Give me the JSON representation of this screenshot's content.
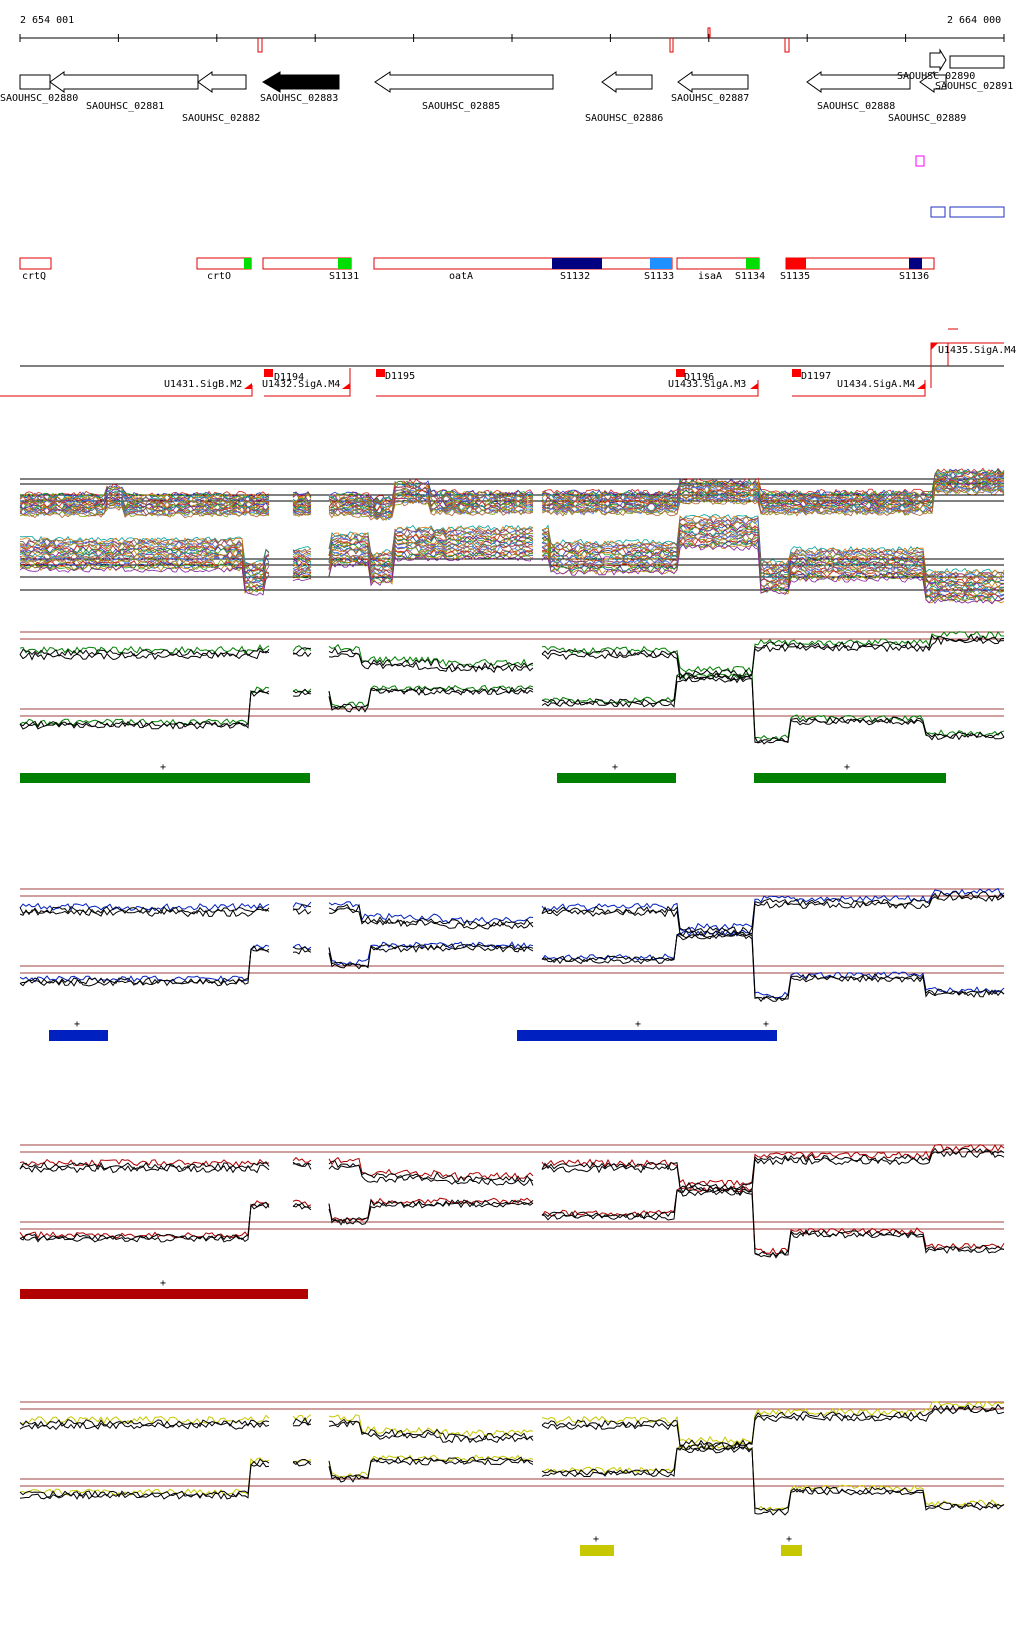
{
  "ruler": {
    "start_label": "2 654 001",
    "end_label": "2 664 000"
  },
  "colors": {
    "gene_outline": "#000000",
    "gene_highlight": "#000000",
    "feature_outline": "#e00000",
    "feature_green": "#00dd00",
    "feature_navy": "#000080",
    "feature_cyan": "#1e90ff",
    "feature_red": "#ff0000",
    "magenta": "#ff00ff",
    "blue_outline": "#2030c0",
    "threshold": "#a04040",
    "track_green": "#008000",
    "track_blue": "#0020c0",
    "track_red": "#b00000",
    "track_yellow": "#c8c800"
  },
  "genes": [
    {
      "label": "SAOUHSC_02880"
    },
    {
      "label": "SAOUHSC_02881"
    },
    {
      "label": "SAOUHSC_02882"
    },
    {
      "label": "SAOUHSC_02883"
    },
    {
      "label": "SAOUHSC_02885"
    },
    {
      "label": "SAOUHSC_02886"
    },
    {
      "label": "SAOUHSC_02887"
    },
    {
      "label": "SAOUHSC_02888"
    },
    {
      "label": "SAOUHSC_02889"
    },
    {
      "label": "SAOUHSC_02890"
    },
    {
      "label": "SAOUHSC_02891"
    }
  ],
  "features": [
    {
      "label": "crtQ"
    },
    {
      "label": "crtO"
    },
    {
      "label": "S1131"
    },
    {
      "label": "oatA"
    },
    {
      "label": "S1132"
    },
    {
      "label": "S1133"
    },
    {
      "label": "isaA"
    },
    {
      "label": "S1134"
    },
    {
      "label": "S1135"
    },
    {
      "label": "S1136"
    }
  ],
  "transcripts": [
    {
      "label": "U1431.SigB.M2"
    },
    {
      "label": "D1194"
    },
    {
      "label": "U1432.SigA.M4"
    },
    {
      "label": "D1195"
    },
    {
      "label": "D1196"
    },
    {
      "label": "U1433.SigA.M3"
    },
    {
      "label": "D1197"
    },
    {
      "label": "U1434.SigA.M4"
    },
    {
      "label": "U1435.SigA.M4"
    }
  ],
  "plus_sign": "+"
}
